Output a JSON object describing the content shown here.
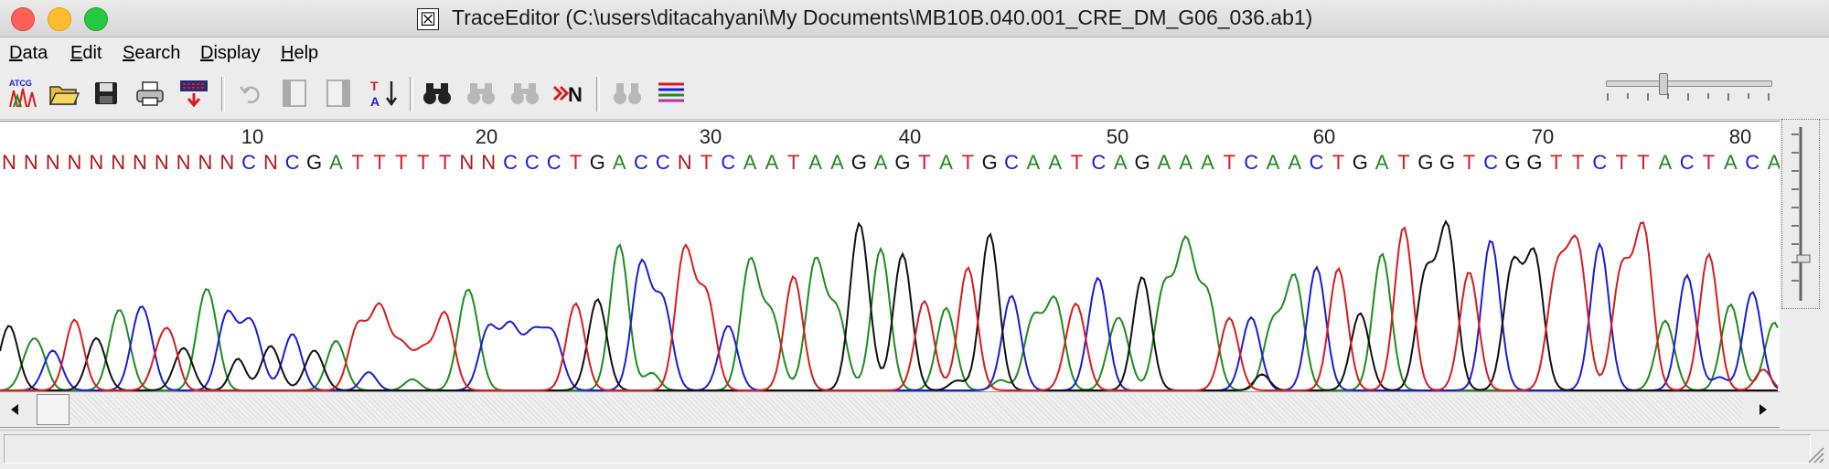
{
  "window": {
    "title": "TraceEditor (C:\\users\\ditacahyani\\My Documents\\MB10B.040.001_CRE_DM_G06_036.ab1)",
    "app_icon": "x-window-icon"
  },
  "menu": [
    {
      "u": "D",
      "rest": "ata"
    },
    {
      "u": "E",
      "rest": "dit"
    },
    {
      "u": "S",
      "rest": "earch"
    },
    {
      "u": "D",
      "rest": "isplay"
    },
    {
      "u": "H",
      "rest": "elp"
    }
  ],
  "toolbar": {
    "icons": [
      "atgc-icon",
      "open-folder-icon",
      "save-icon",
      "print-icon",
      "export-icon",
      "undo-icon",
      "left-panel-icon",
      "right-panel-icon",
      "sort-icon",
      "binoculars-icon",
      "find-next-icon",
      "find-previous-icon",
      "next-n-icon",
      "find-all-icon",
      "color-lines-icon"
    ],
    "atgc_label": "ATCG",
    "next_n_label": "N"
  },
  "trace": {
    "ruler": [
      "10",
      "20",
      "30",
      "40",
      "50",
      "60",
      "70",
      "80"
    ],
    "bases": [
      {
        "b": "N",
        "c": "red"
      },
      {
        "b": "N",
        "c": "red"
      },
      {
        "b": "N",
        "c": "red"
      },
      {
        "b": "N",
        "c": "red"
      },
      {
        "b": "N",
        "c": "red"
      },
      {
        "b": "N",
        "c": "red"
      },
      {
        "b": "N",
        "c": "red"
      },
      {
        "b": "N",
        "c": "red"
      },
      {
        "b": "N",
        "c": "red"
      },
      {
        "b": "N",
        "c": "red"
      },
      {
        "b": "N",
        "c": "red"
      },
      {
        "b": "C",
        "c": "blue"
      },
      {
        "b": "N",
        "c": "red"
      },
      {
        "b": "C",
        "c": "blue"
      },
      {
        "b": "G",
        "c": "black"
      },
      {
        "b": "A",
        "c": "green"
      },
      {
        "b": "T",
        "c": "red"
      },
      {
        "b": "T",
        "c": "red"
      },
      {
        "b": "T",
        "c": "red"
      },
      {
        "b": "T",
        "c": "red"
      },
      {
        "b": "T",
        "c": "red"
      },
      {
        "b": "N",
        "c": "red"
      },
      {
        "b": "N",
        "c": "red"
      },
      {
        "b": "C",
        "c": "blue"
      },
      {
        "b": "C",
        "c": "blue"
      },
      {
        "b": "C",
        "c": "blue"
      },
      {
        "b": "T",
        "c": "red"
      },
      {
        "b": "G",
        "c": "black"
      },
      {
        "b": "A",
        "c": "green"
      },
      {
        "b": "C",
        "c": "blue"
      },
      {
        "b": "C",
        "c": "blue"
      },
      {
        "b": "N",
        "c": "red"
      },
      {
        "b": "T",
        "c": "red"
      },
      {
        "b": "C",
        "c": "blue"
      },
      {
        "b": "A",
        "c": "green"
      },
      {
        "b": "A",
        "c": "green"
      },
      {
        "b": "T",
        "c": "red"
      },
      {
        "b": "A",
        "c": "green"
      },
      {
        "b": "A",
        "c": "green"
      },
      {
        "b": "G",
        "c": "black"
      },
      {
        "b": "A",
        "c": "green"
      },
      {
        "b": "G",
        "c": "black"
      },
      {
        "b": "T",
        "c": "red"
      },
      {
        "b": "A",
        "c": "green"
      },
      {
        "b": "T",
        "c": "red"
      },
      {
        "b": "G",
        "c": "black"
      },
      {
        "b": "C",
        "c": "blue"
      },
      {
        "b": "A",
        "c": "green"
      },
      {
        "b": "A",
        "c": "green"
      },
      {
        "b": "T",
        "c": "red"
      },
      {
        "b": "C",
        "c": "blue"
      },
      {
        "b": "A",
        "c": "green"
      },
      {
        "b": "G",
        "c": "black"
      },
      {
        "b": "A",
        "c": "green"
      },
      {
        "b": "A",
        "c": "green"
      },
      {
        "b": "A",
        "c": "green"
      },
      {
        "b": "T",
        "c": "red"
      },
      {
        "b": "C",
        "c": "blue"
      },
      {
        "b": "A",
        "c": "green"
      },
      {
        "b": "A",
        "c": "green"
      },
      {
        "b": "C",
        "c": "blue"
      },
      {
        "b": "T",
        "c": "red"
      },
      {
        "b": "G",
        "c": "black"
      },
      {
        "b": "A",
        "c": "green"
      },
      {
        "b": "T",
        "c": "red"
      },
      {
        "b": "G",
        "c": "black"
      },
      {
        "b": "G",
        "c": "black"
      },
      {
        "b": "T",
        "c": "red"
      },
      {
        "b": "C",
        "c": "blue"
      },
      {
        "b": "G",
        "c": "black"
      },
      {
        "b": "G",
        "c": "black"
      },
      {
        "b": "T",
        "c": "red"
      },
      {
        "b": "T",
        "c": "red"
      },
      {
        "b": "C",
        "c": "blue"
      },
      {
        "b": "T",
        "c": "red"
      },
      {
        "b": "T",
        "c": "red"
      },
      {
        "b": "A",
        "c": "green"
      },
      {
        "b": "C",
        "c": "blue"
      },
      {
        "b": "T",
        "c": "red"
      },
      {
        "b": "A",
        "c": "green"
      },
      {
        "b": "C",
        "c": "blue"
      },
      {
        "b": "A",
        "c": "green"
      }
    ],
    "colors": {
      "A": "#1e8c1e",
      "C": "#1c1cd8",
      "G": "#111111",
      "T": "#d81c1c",
      "N": "#b01818"
    }
  },
  "status": {
    "text": ""
  }
}
